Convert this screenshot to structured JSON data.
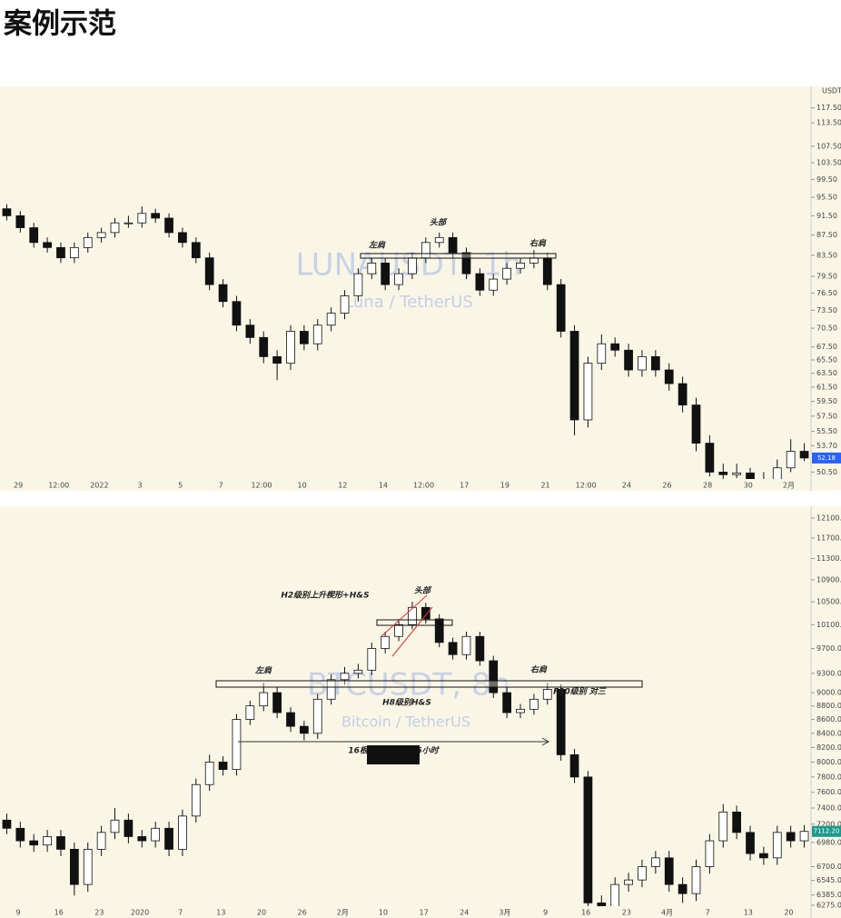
{
  "title": "案例示范",
  "chart_data": [
    {
      "type": "candlestick",
      "watermark": "LUNAUSDT, 1h",
      "subtitle": "Luna / TetherUS",
      "currency": "USDT",
      "log_scale": true,
      "up_color": "#ffffff",
      "down_color": "#111111",
      "ylim": [
        49.7,
        123
      ],
      "yticks": [
        {
          "value": 117.5,
          "label": "117.50"
        },
        {
          "value": 113.5,
          "label": "113.50"
        },
        {
          "value": 107.5,
          "label": "107.50"
        },
        {
          "value": 103.5,
          "label": "103.50"
        },
        {
          "value": 99.5,
          "label": "99.50"
        },
        {
          "value": 95.5,
          "label": "95.50"
        },
        {
          "value": 91.5,
          "label": "91.50"
        },
        {
          "value": 87.5,
          "label": "87.50"
        },
        {
          "value": 83.5,
          "label": "83.50"
        },
        {
          "value": 79.5,
          "label": "79.50"
        },
        {
          "value": 76.5,
          "label": "76.50"
        },
        {
          "value": 73.5,
          "label": "73.50"
        },
        {
          "value": 70.5,
          "label": "70.50"
        },
        {
          "value": 67.5,
          "label": "67.50"
        },
        {
          "value": 65.5,
          "label": "65.50"
        },
        {
          "value": 63.5,
          "label": "63.50"
        },
        {
          "value": 61.5,
          "label": "61.50"
        },
        {
          "value": 59.5,
          "label": "59.50"
        },
        {
          "value": 57.5,
          "label": "57.50"
        },
        {
          "value": 55.5,
          "label": "55.50"
        },
        {
          "value": 53.7,
          "label": "53.70"
        },
        {
          "value": 50.5,
          "label": "50.50"
        }
      ],
      "x_tick_labels": [
        "29",
        "12:00",
        "2022",
        "3",
        "5",
        "7",
        "12:00",
        "10",
        "12",
        "14",
        "12:00",
        "17",
        "19",
        "21",
        "12:00",
        "24",
        "26",
        "28",
        "30",
        "2月"
      ],
      "price_tag": {
        "value": 52.18,
        "label": "52.18"
      },
      "annotations": [
        "左肩",
        "头部",
        "右肩"
      ],
      "ohlc": [
        [
          93,
          94,
          90.5,
          91.5
        ],
        [
          91.5,
          92.5,
          88,
          89
        ],
        [
          89,
          90,
          85,
          86
        ],
        [
          86,
          87,
          84,
          85
        ],
        [
          85,
          86,
          82,
          83
        ],
        [
          83,
          86,
          82,
          85
        ],
        [
          85,
          88,
          84,
          87
        ],
        [
          87,
          89,
          86,
          88
        ],
        [
          88,
          91,
          87,
          90
        ],
        [
          90,
          91.5,
          89,
          90
        ],
        [
          90,
          93.5,
          89,
          92
        ],
        [
          92,
          93,
          90,
          91
        ],
        [
          91,
          92,
          87,
          88
        ],
        [
          88,
          89,
          85,
          86
        ],
        [
          86,
          87,
          82,
          83
        ],
        [
          83,
          84,
          77,
          78
        ],
        [
          78,
          79,
          74,
          75
        ],
        [
          75,
          76,
          70,
          71
        ],
        [
          71,
          72,
          68,
          69
        ],
        [
          69,
          70,
          65,
          66
        ],
        [
          66,
          67,
          62.5,
          65
        ],
        [
          65,
          71,
          64,
          70
        ],
        [
          70,
          71,
          67,
          68
        ],
        [
          68,
          72,
          67,
          71
        ],
        [
          71,
          74,
          70,
          73
        ],
        [
          73,
          77,
          72,
          76
        ],
        [
          76,
          81,
          75,
          80
        ],
        [
          80,
          83,
          79,
          82
        ],
        [
          82,
          83,
          77,
          78
        ],
        [
          78,
          81,
          77,
          80
        ],
        [
          80,
          84,
          79,
          83
        ],
        [
          83,
          87,
          82,
          86
        ],
        [
          86,
          88,
          85,
          87
        ],
        [
          87,
          88,
          83,
          84
        ],
        [
          84,
          85,
          79,
          80
        ],
        [
          80,
          81,
          76,
          77
        ],
        [
          77,
          80,
          76,
          79
        ],
        [
          79,
          82,
          78,
          81
        ],
        [
          81,
          83,
          80,
          82
        ],
        [
          82,
          84.5,
          81,
          83
        ],
        [
          83,
          84,
          77,
          78
        ],
        [
          78,
          79,
          69,
          70
        ],
        [
          70,
          71,
          55,
          57
        ],
        [
          57,
          66,
          56,
          65
        ],
        [
          65,
          69.5,
          64,
          68
        ],
        [
          68,
          69,
          66,
          67
        ],
        [
          67,
          68,
          63,
          64
        ],
        [
          64,
          67,
          63,
          66
        ],
        [
          66,
          67,
          63,
          64
        ],
        [
          64,
          65,
          61,
          62
        ],
        [
          62,
          63,
          58,
          59
        ],
        [
          59,
          60,
          53,
          54
        ],
        [
          54,
          55,
          50,
          50.5
        ],
        [
          50.5,
          51.5,
          49.5,
          50.2
        ],
        [
          50.2,
          51.5,
          49.8,
          50.4
        ],
        [
          50.4,
          51,
          48.8,
          49
        ],
        [
          49,
          50.5,
          48.7,
          49.5
        ],
        [
          49.5,
          52,
          49,
          51
        ],
        [
          51,
          54.5,
          50.5,
          53
        ],
        [
          53,
          54,
          51.8,
          52.18
        ]
      ]
    },
    {
      "type": "candlestick",
      "watermark": "BTCUSDT, 8h",
      "subtitle": "Bitcoin / TetherUS",
      "log_scale": true,
      "up_color": "#ffffff",
      "down_color": "#111111",
      "ylim": [
        6265,
        12290
      ],
      "yticks": [
        {
          "value": 12100,
          "label": "12100.00"
        },
        {
          "value": 11700,
          "label": "11700.00"
        },
        {
          "value": 11300,
          "label": "11300.00"
        },
        {
          "value": 10900,
          "label": "10900.00"
        },
        {
          "value": 10500,
          "label": "10500.00"
        },
        {
          "value": 10100,
          "label": "10100.00"
        },
        {
          "value": 9700,
          "label": "9700.00"
        },
        {
          "value": 9300,
          "label": "9300.00"
        },
        {
          "value": 9000,
          "label": "9000.00"
        },
        {
          "value": 8800,
          "label": "8800.00"
        },
        {
          "value": 8600,
          "label": "8600.00"
        },
        {
          "value": 8400,
          "label": "8400.00"
        },
        {
          "value": 8200,
          "label": "8200.00"
        },
        {
          "value": 8000,
          "label": "8000.00"
        },
        {
          "value": 7800,
          "label": "7800.00"
        },
        {
          "value": 7600,
          "label": "7600.00"
        },
        {
          "value": 7400,
          "label": "7400.00"
        },
        {
          "value": 7200,
          "label": "7200.00"
        },
        {
          "value": 6980,
          "label": "6980.00"
        },
        {
          "value": 6700,
          "label": "6700.00"
        },
        {
          "value": 6545,
          "label": "6545.00"
        },
        {
          "value": 6385,
          "label": "6385.00"
        },
        {
          "value": 6275,
          "label": "6275.00"
        }
      ],
      "x_tick_labels": [
        "9",
        "16",
        "23",
        "2020",
        "7",
        "13",
        "20",
        "26",
        "2月",
        "10",
        "17",
        "24",
        "3月",
        "9",
        "16",
        "23",
        "4月",
        "7",
        "13",
        "20"
      ],
      "price_tag": {
        "value": 7112.2,
        "label": "7112.20"
      },
      "annotations": [
        "H2级别上升楔形+H&S",
        "头部",
        "左肩",
        "右肩",
        "H8级别H&S",
        "F30级别 对三",
        "16根K线, 53天 16小时",
        "Vol 2.907M"
      ],
      "ohlc": [
        [
          7250,
          7330,
          7080,
          7150
        ],
        [
          7150,
          7230,
          6920,
          7000
        ],
        [
          7000,
          7080,
          6870,
          6950
        ],
        [
          6950,
          7130,
          6870,
          7050
        ],
        [
          7050,
          7130,
          6820,
          6900
        ],
        [
          6900,
          6980,
          6380,
          6500
        ],
        [
          6500,
          6980,
          6420,
          6900
        ],
        [
          6900,
          7180,
          6820,
          7100
        ],
        [
          7100,
          7400,
          7020,
          7250
        ],
        [
          7250,
          7330,
          6970,
          7050
        ],
        [
          7050,
          7130,
          6920,
          7000
        ],
        [
          7000,
          7230,
          6920,
          7150
        ],
        [
          7150,
          7230,
          6820,
          6900
        ],
        [
          6900,
          7380,
          6820,
          7300
        ],
        [
          7300,
          7780,
          7220,
          7700
        ],
        [
          7700,
          8100,
          7620,
          8000
        ],
        [
          8000,
          8080,
          7820,
          7900
        ],
        [
          7900,
          8680,
          7820,
          8600
        ],
        [
          8600,
          8880,
          8520,
          8800
        ],
        [
          8800,
          9150,
          8720,
          9000
        ],
        [
          9000,
          9080,
          8620,
          8700
        ],
        [
          8700,
          8780,
          8420,
          8500
        ],
        [
          8500,
          8580,
          8300,
          8400
        ],
        [
          8400,
          8980,
          8320,
          8900
        ],
        [
          8900,
          9280,
          8820,
          9200
        ],
        [
          9200,
          9400,
          9120,
          9300
        ],
        [
          9300,
          9450,
          9220,
          9350
        ],
        [
          9350,
          9800,
          9270,
          9700
        ],
        [
          9700,
          9980,
          9620,
          9900
        ],
        [
          9900,
          10200,
          9820,
          10100
        ],
        [
          10100,
          10500,
          10020,
          10400
        ],
        [
          10400,
          10480,
          10120,
          10200
        ],
        [
          10200,
          10280,
          9720,
          9800
        ],
        [
          9800,
          9880,
          9520,
          9600
        ],
        [
          9600,
          9980,
          9520,
          9900
        ],
        [
          9900,
          9980,
          9420,
          9500
        ],
        [
          9500,
          9580,
          8920,
          9000
        ],
        [
          9000,
          9080,
          8620,
          8700
        ],
        [
          8700,
          8830,
          8620,
          8750
        ],
        [
          8750,
          8980,
          8670,
          8900
        ],
        [
          8900,
          9150,
          8820,
          9050
        ],
        [
          9050,
          9130,
          8020,
          8100
        ],
        [
          8100,
          8180,
          7720,
          7800
        ],
        [
          7800,
          7880,
          5800,
          6300
        ],
        [
          6300,
          6380,
          6000,
          6250
        ],
        [
          6250,
          6580,
          6170,
          6500
        ],
        [
          6500,
          6630,
          6420,
          6550
        ],
        [
          6550,
          6780,
          6470,
          6700
        ],
        [
          6700,
          6880,
          6620,
          6800
        ],
        [
          6800,
          6880,
          6420,
          6500
        ],
        [
          6500,
          6580,
          6300,
          6400
        ],
        [
          6400,
          6780,
          6320,
          6700
        ],
        [
          6700,
          7080,
          6620,
          7000
        ],
        [
          7000,
          7450,
          6920,
          7350
        ],
        [
          7350,
          7430,
          7020,
          7100
        ],
        [
          7100,
          7180,
          6770,
          6850
        ],
        [
          6850,
          6930,
          6720,
          6800
        ],
        [
          6800,
          7180,
          6720,
          7100
        ],
        [
          7100,
          7180,
          6920,
          7000
        ],
        [
          7000,
          7190,
          6920,
          7112.2
        ]
      ]
    }
  ]
}
